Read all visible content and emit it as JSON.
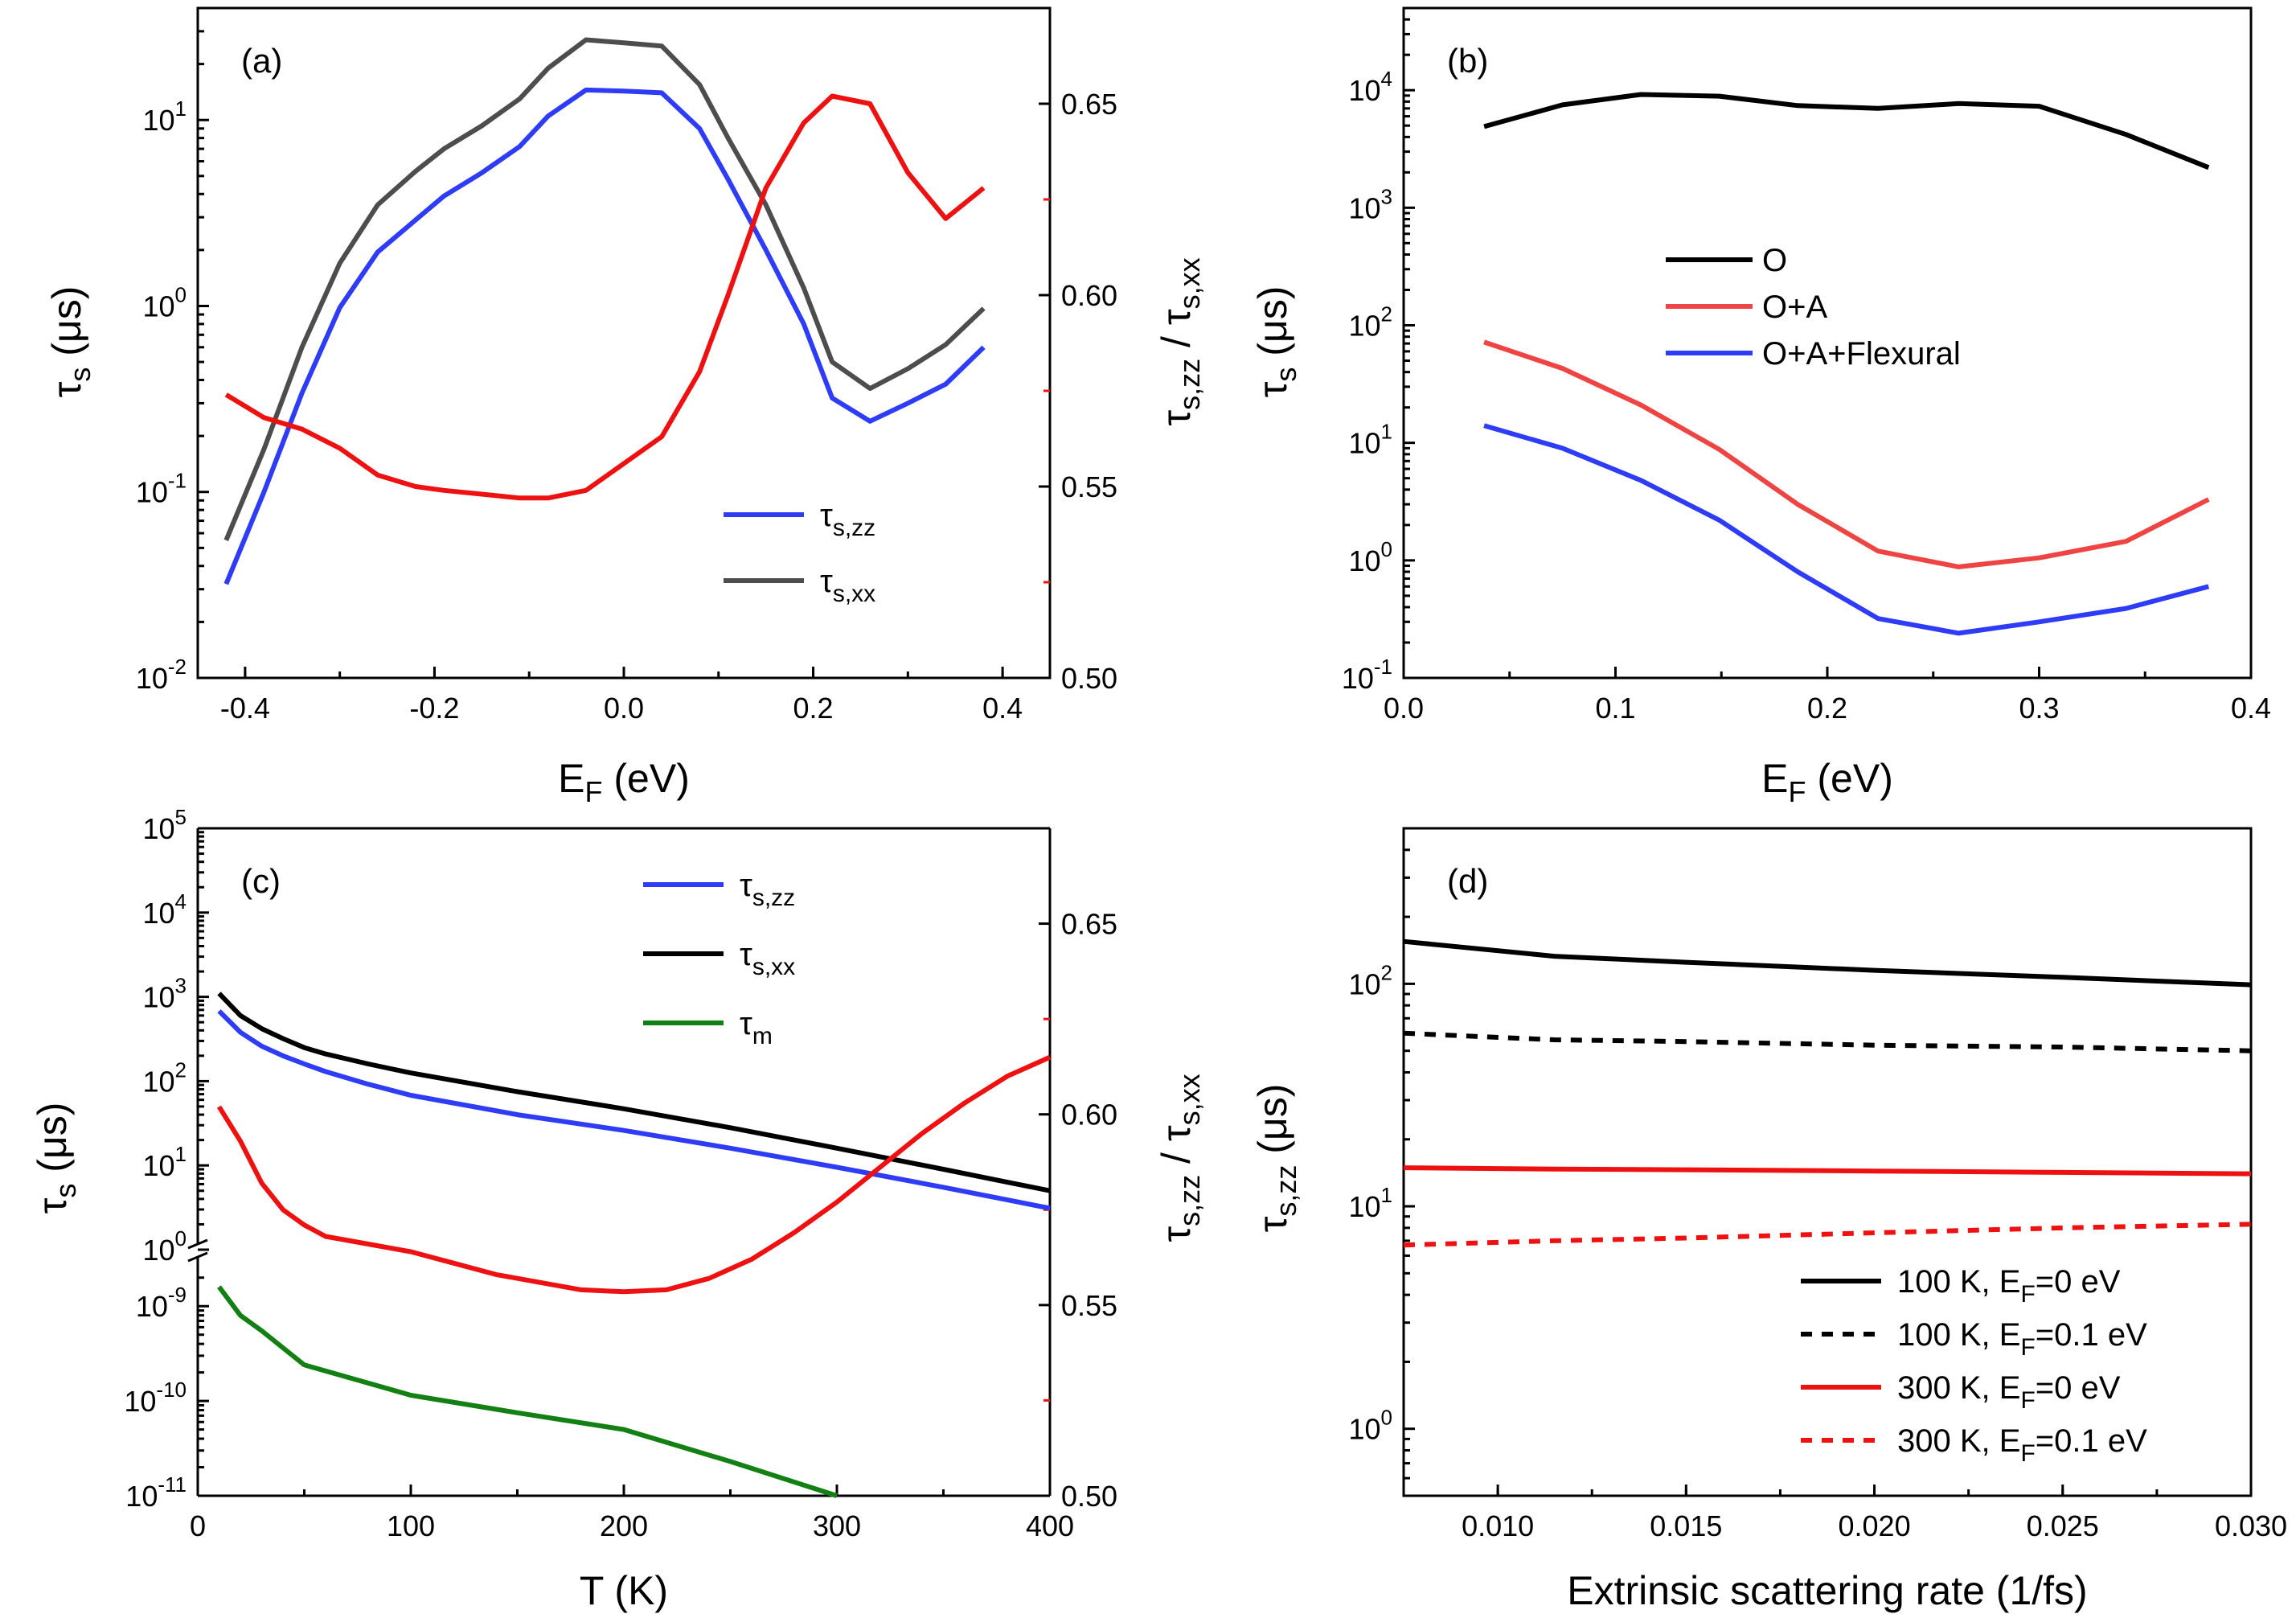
{
  "figure": {
    "panels": [
      "a",
      "b",
      "c",
      "d"
    ]
  },
  "chart_data": [
    {
      "panel": "(a)",
      "type": "line",
      "xlabel": "E_F (eV)",
      "ylabel_left": "τ_s (μs)",
      "ylabel_right": "τ_s,zz / τ_s,xx",
      "xlim": [
        -0.45,
        0.45
      ],
      "ylim_left": [
        0.01,
        40
      ],
      "ylim_right": [
        0.5,
        0.675
      ],
      "xticks": [
        -0.4,
        -0.2,
        0.0,
        0.2,
        0.4
      ],
      "xtick_labels": [
        "-0.4",
        "-0.2",
        "0.0",
        "0.2",
        "0.4"
      ],
      "yticks_left": [
        {
          "base": "10",
          "exp": "-2"
        },
        {
          "base": "10",
          "exp": "-1"
        },
        {
          "base": "10",
          "exp": "0"
        },
        {
          "base": "10",
          "exp": "1"
        }
      ],
      "yticks_right": [
        "0.50",
        "0.55",
        "0.60",
        "0.65"
      ],
      "legend": [
        {
          "main": "τ",
          "sub": "s,zz",
          "color": "#2F3CF5"
        },
        {
          "main": "τ",
          "sub": "s,xx",
          "color": "#4D4D4D"
        }
      ],
      "series": [
        {
          "name": "τs,zz",
          "axis": "left",
          "color": "#2F3CF5",
          "x": [
            -0.42,
            -0.38,
            -0.34,
            -0.3,
            -0.26,
            -0.22,
            -0.19,
            -0.15,
            -0.11,
            -0.08,
            -0.04,
            0.0,
            0.04,
            0.08,
            0.11,
            0.15,
            0.19,
            0.22,
            0.26,
            0.3,
            0.34,
            0.38
          ],
          "values": [
            0.032,
            0.1,
            0.34,
            0.98,
            1.95,
            2.9,
            3.9,
            5.2,
            7.2,
            10.5,
            14.5,
            14.3,
            14.0,
            9.0,
            4.8,
            2.0,
            0.8,
            0.32,
            0.24,
            0.3,
            0.38,
            0.6
          ]
        },
        {
          "name": "τs,xx",
          "axis": "left",
          "color": "#4D4D4D",
          "x": [
            -0.42,
            -0.38,
            -0.34,
            -0.3,
            -0.26,
            -0.22,
            -0.19,
            -0.15,
            -0.11,
            -0.08,
            -0.04,
            0.0,
            0.04,
            0.08,
            0.11,
            0.15,
            0.19,
            0.22,
            0.26,
            0.3,
            0.34,
            0.38
          ],
          "values": [
            0.055,
            0.17,
            0.6,
            1.7,
            3.5,
            5.3,
            7.0,
            9.3,
            13.0,
            19.0,
            27.0,
            26.0,
            25.0,
            15.5,
            8.0,
            3.5,
            1.25,
            0.5,
            0.36,
            0.46,
            0.62,
            0.97
          ]
        },
        {
          "name": "ratio",
          "axis": "right",
          "color": "#EE1111",
          "x": [
            -0.42,
            -0.38,
            -0.34,
            -0.3,
            -0.26,
            -0.22,
            -0.19,
            -0.15,
            -0.11,
            -0.08,
            -0.04,
            0.0,
            0.04,
            0.08,
            0.11,
            0.15,
            0.19,
            0.22,
            0.26,
            0.3,
            0.34,
            0.38
          ],
          "values": [
            0.574,
            0.568,
            0.565,
            0.56,
            0.553,
            0.55,
            0.549,
            0.548,
            0.547,
            0.547,
            0.549,
            0.556,
            0.563,
            0.58,
            0.6,
            0.628,
            0.645,
            0.652,
            0.65,
            0.632,
            0.62,
            0.628
          ]
        }
      ]
    },
    {
      "panel": "(b)",
      "type": "line",
      "xlabel": "E_F (eV)",
      "ylabel": "τ_s (μs)",
      "xlim": [
        0.0,
        0.4
      ],
      "ylim": [
        0.1,
        50000
      ],
      "xticks": [
        0.0,
        0.1,
        0.2,
        0.3,
        0.4
      ],
      "xtick_labels": [
        "0.0",
        "0.1",
        "0.2",
        "0.3",
        "0.4"
      ],
      "yticks": [
        {
          "base": "10",
          "exp": "-1"
        },
        {
          "base": "10",
          "exp": "0"
        },
        {
          "base": "10",
          "exp": "1"
        },
        {
          "base": "10",
          "exp": "2"
        },
        {
          "base": "10",
          "exp": "3"
        },
        {
          "base": "10",
          "exp": "4"
        }
      ],
      "legend": [
        {
          "label": "O",
          "color": "#000000"
        },
        {
          "label": "O+A",
          "color": "#EE4444"
        },
        {
          "label": "O+A+Flexural",
          "color": "#2F3CF5"
        }
      ],
      "series": [
        {
          "name": "O",
          "color": "#000000",
          "x": [
            0.038,
            0.075,
            0.112,
            0.149,
            0.186,
            0.224,
            0.262,
            0.3,
            0.341,
            0.38
          ],
          "values": [
            4900,
            7500,
            9200,
            8900,
            7400,
            7000,
            7700,
            7300,
            4200,
            2200
          ]
        },
        {
          "name": "O+A",
          "color": "#EE4444",
          "x": [
            0.038,
            0.075,
            0.112,
            0.149,
            0.186,
            0.224,
            0.262,
            0.3,
            0.341,
            0.38
          ],
          "values": [
            72,
            43,
            21,
            8.8,
            3.0,
            1.2,
            0.88,
            1.05,
            1.45,
            3.3
          ]
        },
        {
          "name": "O+A+Flexural",
          "color": "#2F3CF5",
          "x": [
            0.038,
            0.075,
            0.112,
            0.149,
            0.186,
            0.224,
            0.262,
            0.3,
            0.341,
            0.38
          ],
          "values": [
            14,
            9.0,
            4.8,
            2.2,
            0.8,
            0.32,
            0.24,
            0.3,
            0.39,
            0.6
          ]
        }
      ]
    },
    {
      "panel": "(c)",
      "type": "line",
      "xlabel": "T (K)",
      "ylabel_left": "τ_s (μs)",
      "ylabel_right": "τ_s,zz / τ_s,xx",
      "xlim": [
        0,
        400
      ],
      "ylim_left_upper": [
        1,
        100000
      ],
      "ylim_left_lower": [
        1e-11,
        3e-09
      ],
      "ylim_right": [
        0.5,
        0.675
      ],
      "xticks": [
        0,
        100,
        200,
        300,
        400
      ],
      "xtick_labels": [
        "0",
        "100",
        "200",
        "300",
        "400"
      ],
      "yticks_upper": [
        {
          "base": "10",
          "exp": "0"
        },
        {
          "base": "10",
          "exp": "1"
        },
        {
          "base": "10",
          "exp": "2"
        },
        {
          "base": "10",
          "exp": "3"
        },
        {
          "base": "10",
          "exp": "4"
        },
        {
          "base": "10",
          "exp": "5"
        }
      ],
      "yticks_lower": [
        {
          "base": "10",
          "exp": "-11"
        },
        {
          "base": "10",
          "exp": "-10"
        },
        {
          "base": "10",
          "exp": "-9"
        }
      ],
      "yticks_right": [
        "0.50",
        "0.55",
        "0.60",
        "0.65"
      ],
      "legend": [
        {
          "main": "τ",
          "sub": "s,zz",
          "color": "#2F3CF5"
        },
        {
          "main": "τ",
          "sub": "s,xx",
          "color": "#000000"
        },
        {
          "main": "τ",
          "sub": "m",
          "color": "#138013"
        }
      ],
      "series": [
        {
          "name": "τs,zz",
          "axis": "upper",
          "color": "#2F3CF5",
          "x": [
            10,
            20,
            30,
            40,
            50,
            60,
            80,
            100,
            150,
            200,
            250,
            300,
            350,
            400
          ],
          "values": [
            680,
            380,
            260,
            200,
            160,
            130,
            92,
            68,
            40,
            26,
            16,
            9.5,
            5.5,
            3.1
          ]
        },
        {
          "name": "τs,xx",
          "axis": "upper",
          "color": "#000000",
          "x": [
            10,
            20,
            30,
            40,
            50,
            60,
            80,
            100,
            150,
            200,
            250,
            300,
            350,
            400
          ],
          "values": [
            1100,
            600,
            420,
            320,
            250,
            210,
            160,
            125,
            75,
            47,
            28,
            16,
            9,
            5
          ]
        },
        {
          "name": "τm",
          "axis": "lower",
          "color": "#138013",
          "x": [
            10,
            20,
            30,
            50,
            100,
            150,
            200,
            250,
            300
          ],
          "values": [
            1.6e-09,
            8e-10,
            5.5e-10,
            2.4e-10,
            1.15e-10,
            7.5e-11,
            5e-11,
            2.3e-11,
            9.5e-12
          ]
        },
        {
          "name": "ratio",
          "axis": "right",
          "color": "#EE1111",
          "x": [
            10,
            20,
            30,
            40,
            50,
            60,
            80,
            100,
            120,
            140,
            160,
            180,
            200,
            220,
            240,
            260,
            280,
            300,
            320,
            340,
            360,
            380,
            400
          ],
          "values": [
            0.602,
            0.593,
            0.582,
            0.575,
            0.571,
            0.568,
            0.566,
            0.564,
            0.561,
            0.558,
            0.556,
            0.554,
            0.5535,
            0.554,
            0.557,
            0.562,
            0.569,
            0.577,
            0.586,
            0.595,
            0.603,
            0.61,
            0.615
          ]
        }
      ]
    },
    {
      "panel": "(d)",
      "type": "line",
      "xlabel": "Extrinsic scattering rate (1/fs)",
      "ylabel": "τ_s,zz (μs)",
      "xlim": [
        0.0075,
        0.03
      ],
      "ylim": [
        0.5,
        500
      ],
      "xticks": [
        0.01,
        0.015,
        0.02,
        0.025,
        0.03
      ],
      "xtick_labels": [
        "0.010",
        "0.015",
        "0.020",
        "0.025",
        "0.030"
      ],
      "yticks": [
        {
          "base": "10",
          "exp": "0"
        },
        {
          "base": "10",
          "exp": "1"
        },
        {
          "base": "10",
          "exp": "2"
        }
      ],
      "legend": [
        {
          "pre": "100 K, E",
          "sub": "F",
          "post": "=0 eV",
          "color": "#000000",
          "dash": "solid"
        },
        {
          "pre": "100 K, E",
          "sub": "F",
          "post": "=0.1 eV",
          "color": "#000000",
          "dash": "dashed"
        },
        {
          "pre": "300 K, E",
          "sub": "F",
          "post": "=0 eV",
          "color": "#EE1111",
          "dash": "solid"
        },
        {
          "pre": "300 K, E",
          "sub": "F",
          "post": "=0.1 eV",
          "color": "#EE1111",
          "dash": "dashed"
        }
      ],
      "series": [
        {
          "name": "100 K, EF=0 eV",
          "color": "#000000",
          "dash": "solid",
          "x": [
            0.0075,
            0.0115,
            0.015,
            0.02,
            0.025,
            0.03
          ],
          "values": [
            155,
            133,
            125,
            115,
            107,
            99
          ]
        },
        {
          "name": "100 K, EF=0.1 eV",
          "color": "#000000",
          "dash": "dashed",
          "x": [
            0.0075,
            0.0115,
            0.015,
            0.02,
            0.025,
            0.03
          ],
          "values": [
            60,
            56,
            55,
            53,
            52,
            50
          ]
        },
        {
          "name": "300 K, EF=0 eV",
          "color": "#EE1111",
          "dash": "solid",
          "x": [
            0.0075,
            0.0115,
            0.015,
            0.02,
            0.025,
            0.03
          ],
          "values": [
            14.9,
            14.7,
            14.6,
            14.4,
            14.2,
            14.0
          ]
        },
        {
          "name": "300 K, EF=0.1 eV",
          "color": "#EE1111",
          "dash": "dashed",
          "x": [
            0.0075,
            0.0115,
            0.015,
            0.02,
            0.025,
            0.03
          ],
          "values": [
            6.7,
            7.0,
            7.2,
            7.6,
            8.0,
            8.3
          ]
        }
      ]
    }
  ]
}
